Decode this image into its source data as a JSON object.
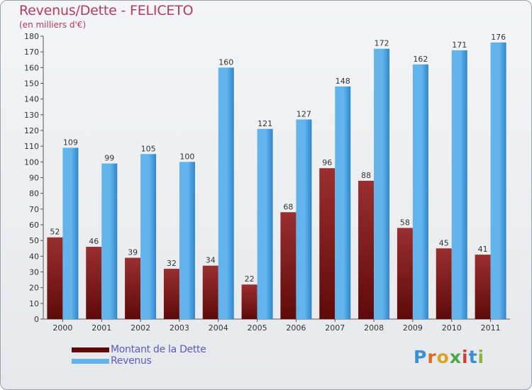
{
  "colors": {
    "debt_top": "#9a2f2f",
    "debt_bottom": "#5e0a0a",
    "rev_light": "#63b4ec",
    "rev_dark": "#2e86cb",
    "title": "#b23b5f",
    "legend_text": "#5a5ac8"
  },
  "chart_data": {
    "type": "bar",
    "title": "Revenus/Dette - FELICETO",
    "subtitle": "(en milliers d'€)",
    "categories": [
      "2000",
      "2001",
      "2002",
      "2003",
      "2004",
      "2005",
      "2006",
      "2007",
      "2008",
      "2009",
      "2010",
      "2011"
    ],
    "series": [
      {
        "name": "Montant de la Dette",
        "values": [
          52,
          46,
          39,
          32,
          34,
          22,
          68,
          96,
          88,
          58,
          45,
          41
        ]
      },
      {
        "name": "Revenus",
        "values": [
          109,
          99,
          105,
          100,
          160,
          121,
          127,
          148,
          172,
          162,
          171,
          176
        ]
      }
    ],
    "ylim": [
      0,
      180
    ],
    "ytick_step": 10,
    "grid": false,
    "legend_position": "bottom-left"
  },
  "logo": {
    "text": "Proxiti"
  }
}
